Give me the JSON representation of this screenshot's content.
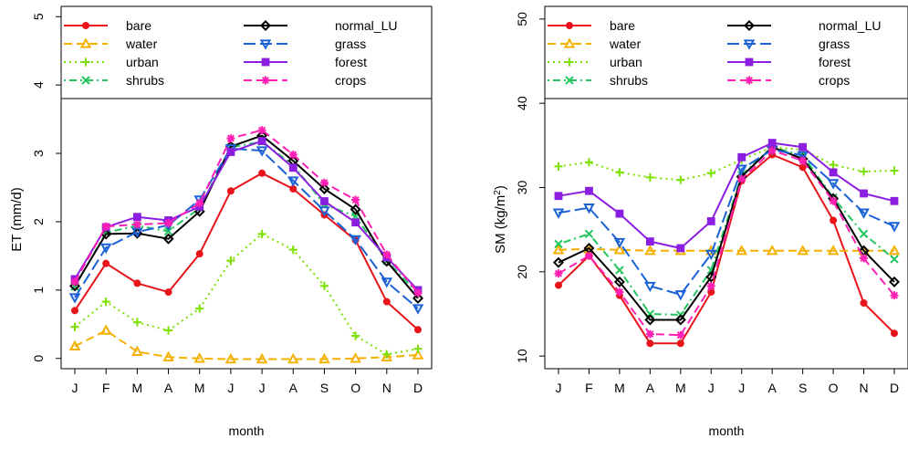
{
  "chart_data": [
    {
      "type": "line",
      "title": "",
      "xlabel": "month",
      "ylabel": "ET (mm/d)",
      "categories": [
        "J",
        "F",
        "M",
        "A",
        "M",
        "J",
        "J",
        "A",
        "S",
        "O",
        "N",
        "D"
      ],
      "ylim": [
        -0.15,
        5.15
      ],
      "yticks": [
        "0",
        "1",
        "2",
        "3",
        "4",
        "5"
      ],
      "grid": false,
      "legend_position": "top",
      "series": [
        {
          "name": "bare",
          "color": "#e8141a",
          "line": "solid",
          "marker": "circle",
          "values": [
            0.7,
            1.39,
            1.1,
            0.97,
            1.53,
            2.45,
            2.71,
            2.48,
            2.1,
            1.73,
            0.83,
            0.42
          ]
        },
        {
          "name": "water",
          "color": "#f5b000",
          "line": "dashed",
          "marker": "triangle",
          "values": [
            0.18,
            0.41,
            0.1,
            0.02,
            0.0,
            -0.01,
            -0.01,
            -0.01,
            -0.01,
            0.0,
            0.02,
            0.05
          ]
        },
        {
          "name": "urban",
          "color": "#7be000",
          "line": "dotted",
          "marker": "plus",
          "values": [
            0.46,
            0.83,
            0.53,
            0.41,
            0.73,
            1.43,
            1.82,
            1.59,
            1.06,
            0.33,
            0.06,
            0.14
          ]
        },
        {
          "name": "shrubs",
          "color": "#22c55e",
          "line": "dotdash",
          "marker": "x",
          "values": [
            1.05,
            1.84,
            1.94,
            1.86,
            2.2,
            3.09,
            3.17,
            2.83,
            2.25,
            2.08,
            1.43,
            0.95
          ]
        },
        {
          "name": "normal_LU",
          "color": "#000000",
          "line": "solid",
          "marker": "diamond",
          "values": [
            1.06,
            1.82,
            1.83,
            1.75,
            2.15,
            3.1,
            3.26,
            2.89,
            2.48,
            2.18,
            1.42,
            0.88
          ]
        },
        {
          "name": "grass",
          "color": "#1c62d6",
          "line": "longdash",
          "marker": "triangle-down",
          "values": [
            0.89,
            1.62,
            1.85,
            1.95,
            2.32,
            3.07,
            3.04,
            2.6,
            2.16,
            1.74,
            1.12,
            0.73
          ]
        },
        {
          "name": "forest",
          "color": "#8b1ee0",
          "line": "solid",
          "marker": "square",
          "values": [
            1.16,
            1.92,
            2.07,
            2.02,
            2.22,
            3.02,
            3.18,
            2.79,
            2.3,
            1.99,
            1.48,
            1.0
          ]
        },
        {
          "name": "crops",
          "color": "#ff1fb4",
          "line": "dashed",
          "marker": "asterisk",
          "values": [
            1.12,
            1.93,
            1.96,
            1.98,
            2.27,
            3.22,
            3.34,
            2.98,
            2.57,
            2.32,
            1.52,
            0.96
          ]
        }
      ]
    },
    {
      "type": "line",
      "title": "",
      "xlabel": "month",
      "ylabel": "SM (kg/m",
      "ylabel_sup": "2",
      "ylabel_close": ")",
      "categories": [
        "J",
        "F",
        "M",
        "A",
        "M",
        "J",
        "J",
        "A",
        "S",
        "O",
        "N",
        "D"
      ],
      "ylim": [
        8.5,
        51.5
      ],
      "yticks": [
        "10",
        "20",
        "30",
        "40",
        "50"
      ],
      "grid": false,
      "legend_position": "top",
      "series": [
        {
          "name": "bare",
          "color": "#e8141a",
          "line": "solid",
          "marker": "circle",
          "values": [
            18.4,
            21.9,
            17.2,
            11.5,
            11.5,
            17.6,
            30.8,
            33.9,
            32.4,
            26.1,
            16.3,
            12.7
          ]
        },
        {
          "name": "water",
          "color": "#f5b000",
          "line": "dashed",
          "marker": "triangle",
          "values": [
            22.6,
            22.7,
            22.6,
            22.5,
            22.5,
            22.5,
            22.5,
            22.5,
            22.5,
            22.5,
            22.5,
            22.5
          ]
        },
        {
          "name": "urban",
          "color": "#7be000",
          "line": "dotted",
          "marker": "plus",
          "values": [
            32.5,
            33.0,
            31.8,
            31.2,
            30.9,
            31.7,
            33.3,
            34.8,
            34.5,
            32.7,
            31.9,
            32.0
          ]
        },
        {
          "name": "shrubs",
          "color": "#22c55e",
          "line": "dotdash",
          "marker": "x",
          "values": [
            23.3,
            24.5,
            20.2,
            15.0,
            14.9,
            20.2,
            31.5,
            34.8,
            33.8,
            28.8,
            24.5,
            21.5
          ]
        },
        {
          "name": "normal_LU",
          "color": "#000000",
          "line": "solid",
          "marker": "diamond",
          "values": [
            21.1,
            22.8,
            18.8,
            14.3,
            14.3,
            19.4,
            31.3,
            34.8,
            33.4,
            28.7,
            22.5,
            18.8
          ]
        },
        {
          "name": "grass",
          "color": "#1c62d6",
          "line": "longdash",
          "marker": "triangle-down",
          "values": [
            27.0,
            27.6,
            23.5,
            18.3,
            17.3,
            22.1,
            32.2,
            34.5,
            33.8,
            30.5,
            27.0,
            25.4
          ]
        },
        {
          "name": "forest",
          "color": "#8b1ee0",
          "line": "solid",
          "marker": "square",
          "values": [
            29.0,
            29.6,
            26.9,
            23.6,
            22.8,
            26.0,
            33.6,
            35.3,
            34.8,
            31.8,
            29.3,
            28.4
          ]
        },
        {
          "name": "crops",
          "color": "#ff1fb4",
          "line": "dashed",
          "marker": "asterisk",
          "values": [
            19.8,
            21.9,
            17.6,
            12.6,
            12.5,
            18.3,
            31.0,
            34.4,
            33.2,
            28.4,
            21.6,
            17.2
          ]
        }
      ]
    }
  ]
}
